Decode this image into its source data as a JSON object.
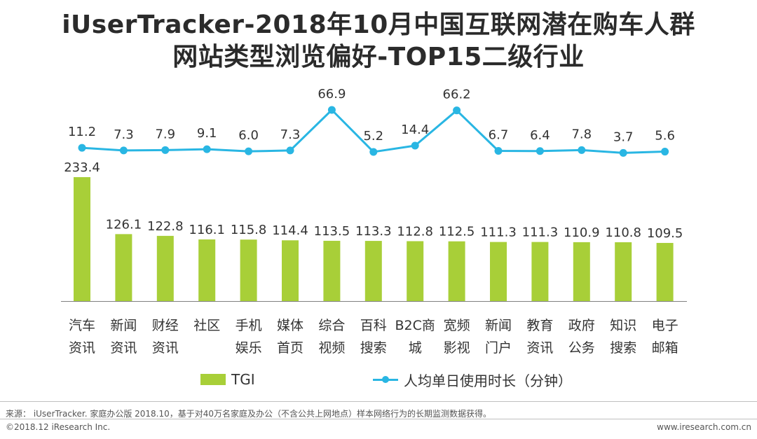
{
  "title": {
    "line1": "iUserTracker-2018年10月中国互联网潜在购车人群",
    "line2": "网站类型浏览偏好-TOP15二级行业"
  },
  "legend": {
    "bar_label": "TGI",
    "line_label": "人均单日使用时长（分钟）"
  },
  "footer": {
    "source": "来源：  iUserTracker. 家庭办公版 2018.10，基于对40万名家庭及办公（不含公共上网地点）样本网络行为的长期监测数据获得。",
    "copyright": "©2018.12 iResearch Inc.",
    "website": "www.iresearch.com.cn"
  },
  "colors": {
    "bar": "#a8cf38",
    "line": "#29b6e3",
    "text": "#333333",
    "axis": "#808080"
  },
  "chart_data": {
    "type": "bar",
    "title": "iUserTracker-2018年10月中国互联网潜在购车人群网站类型浏览偏好-TOP15二级行业",
    "xlabel": "",
    "ylabel": "",
    "categories": [
      [
        "汽车",
        "资讯"
      ],
      [
        "新闻",
        "资讯"
      ],
      [
        "财经",
        "资讯"
      ],
      [
        "社区"
      ],
      [
        "手机",
        "娱乐"
      ],
      [
        "媒体",
        "首页"
      ],
      [
        "综合",
        "视频"
      ],
      [
        "百科",
        "搜索"
      ],
      [
        "B2C商",
        "城"
      ],
      [
        "宽频",
        "影视"
      ],
      [
        "新闻",
        "门户"
      ],
      [
        "教育",
        "资讯"
      ],
      [
        "政府",
        "公务"
      ],
      [
        "知识",
        "搜索"
      ],
      [
        "电子",
        "邮箱"
      ]
    ],
    "series": [
      {
        "name": "TGI",
        "type": "bar",
        "values": [
          233.4,
          126.1,
          122.8,
          116.1,
          115.8,
          114.4,
          113.5,
          113.3,
          112.8,
          112.5,
          111.3,
          111.3,
          110.9,
          110.8,
          109.5
        ],
        "labels": [
          "233.4",
          "126.1",
          "122.8",
          "116.1",
          "115.8",
          "114.4",
          "113.5",
          "113.3",
          "112.8",
          "112.5",
          "111.3",
          "111.3",
          "110.9",
          "110.8",
          "109.5"
        ]
      },
      {
        "name": "人均单日使用时长（分钟）",
        "type": "line",
        "values": [
          11.2,
          7.3,
          7.9,
          9.1,
          6.0,
          7.3,
          66.9,
          5.2,
          14.4,
          66.2,
          6.7,
          6.4,
          7.8,
          3.7,
          5.6
        ],
        "labels": [
          "11.2",
          "7.3",
          "7.9",
          "9.1",
          "6.0",
          "7.3",
          "66.9",
          "5.2",
          "14.4",
          "66.2",
          "6.7",
          "6.4",
          "7.8",
          "3.7",
          "5.6"
        ]
      }
    ],
    "bar_ylim": [
      0,
      233.4
    ],
    "line_ylim": [
      0,
      66.9
    ],
    "grid": false,
    "legend_position": "bottom"
  }
}
